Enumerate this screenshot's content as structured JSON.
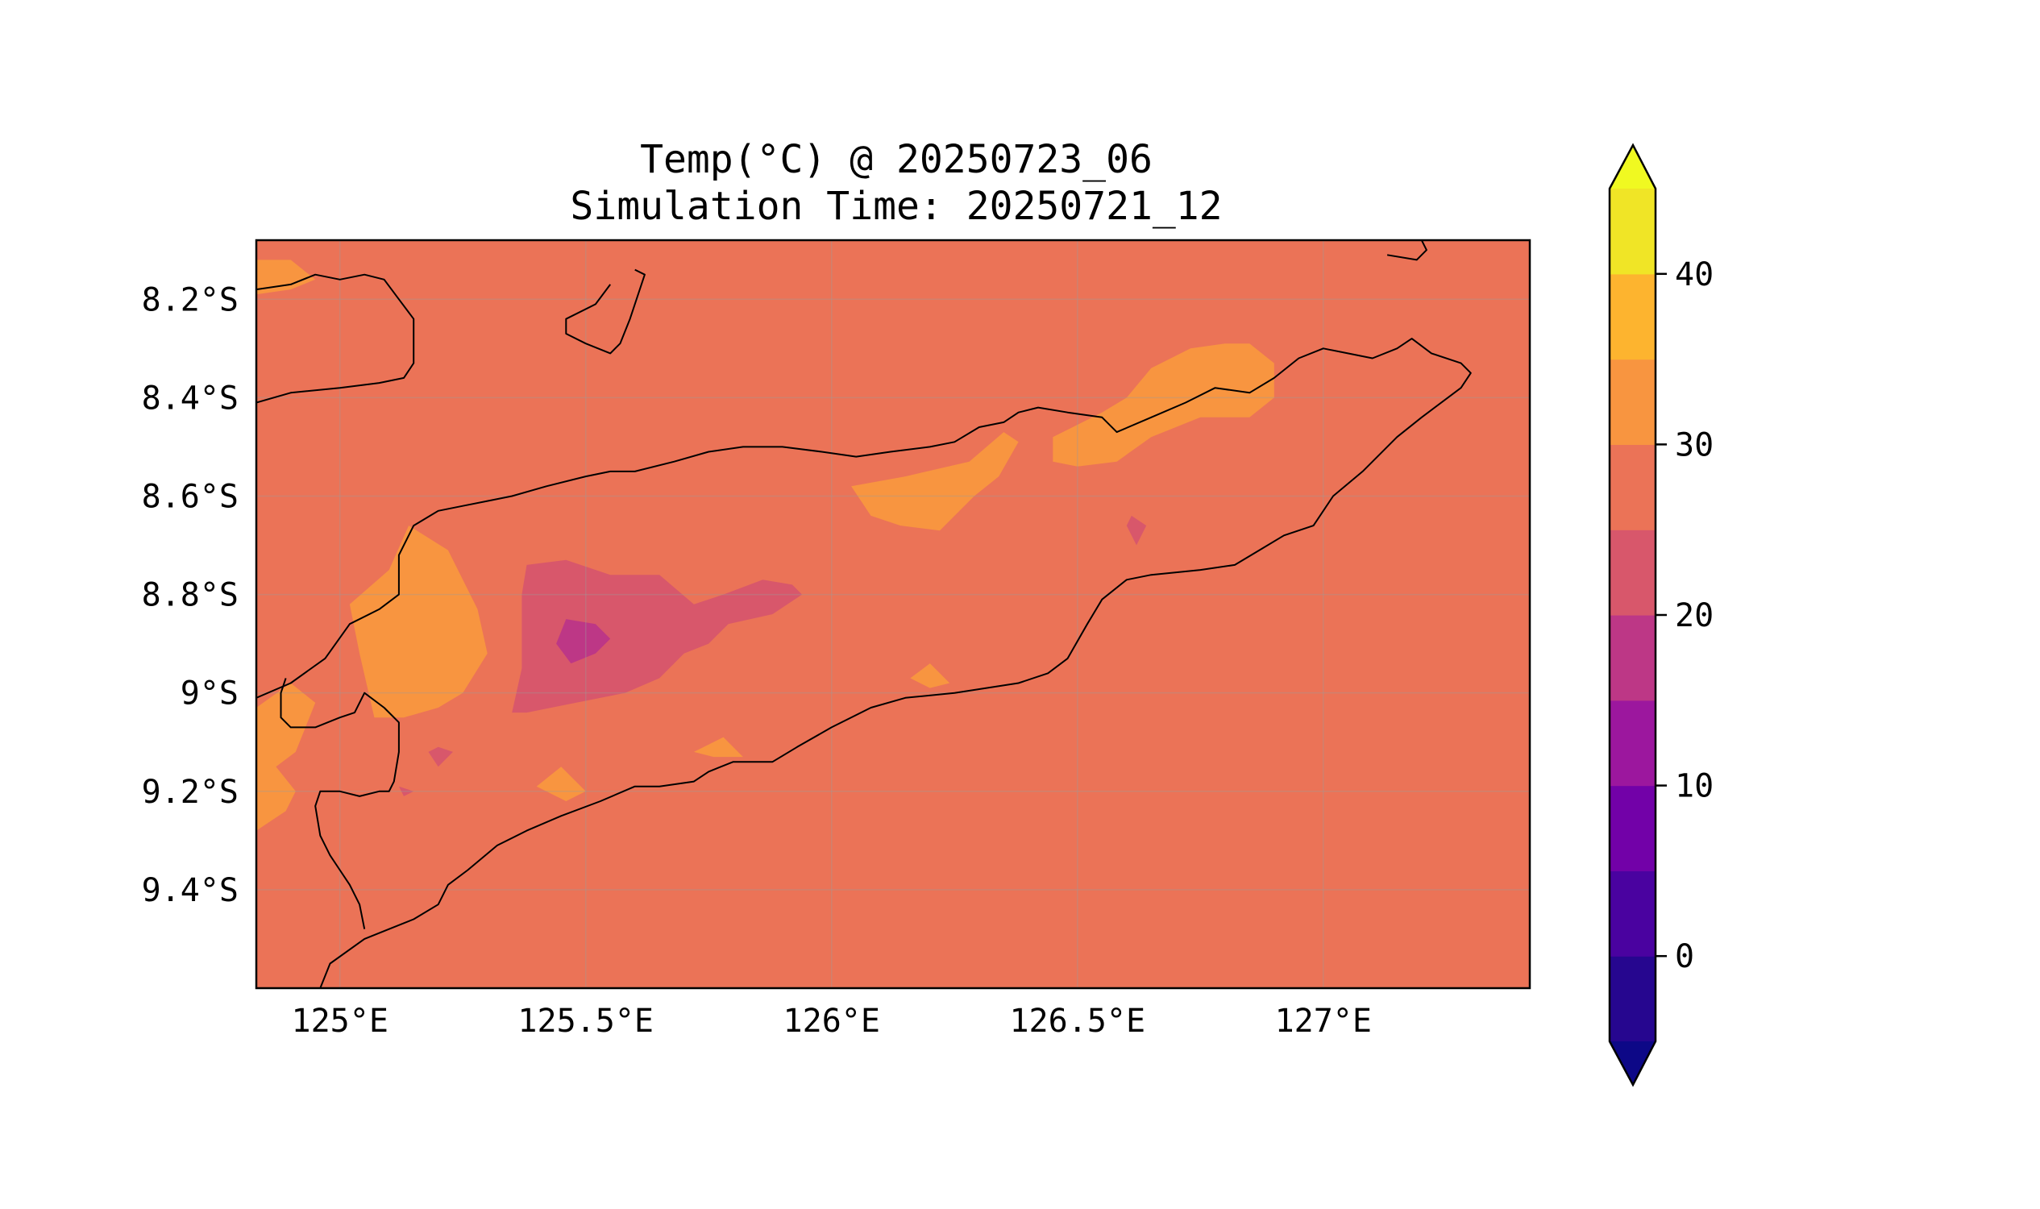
{
  "title": {
    "line1": "Temp(°C) @ 20250723_06",
    "line2": "Simulation Time: 20250721_12"
  },
  "map": {
    "variable": "Temp(°C)",
    "valid_time": "20250723_06",
    "simulation_time": "20250721_12",
    "lon_range": [
      124.83,
      127.42
    ],
    "lat_range": [
      -9.6,
      -8.08
    ],
    "coastlines": true,
    "gridlines": true
  },
  "axes": {
    "x_ticks": [
      {
        "value": 125.0,
        "label": "125°E"
      },
      {
        "value": 125.5,
        "label": "125.5°E"
      },
      {
        "value": 126.0,
        "label": "126°E"
      },
      {
        "value": 126.5,
        "label": "126.5°E"
      },
      {
        "value": 127.0,
        "label": "127°E"
      }
    ],
    "y_ticks": [
      {
        "value": -8.2,
        "label": "8.2°S"
      },
      {
        "value": -8.4,
        "label": "8.4°S"
      },
      {
        "value": -8.6,
        "label": "8.6°S"
      },
      {
        "value": -8.8,
        "label": "8.8°S"
      },
      {
        "value": -9.0,
        "label": "9°S"
      },
      {
        "value": -9.2,
        "label": "9.2°S"
      },
      {
        "value": -9.4,
        "label": "9.4°S"
      }
    ]
  },
  "colorbar": {
    "colormap": "plasma",
    "range": [
      -5,
      45
    ],
    "extend": "both",
    "ticks": [
      {
        "value": 0,
        "label": "0"
      },
      {
        "value": 10,
        "label": "10"
      },
      {
        "value": 20,
        "label": "20"
      },
      {
        "value": 30,
        "label": "30"
      },
      {
        "value": 40,
        "label": "40"
      }
    ],
    "levels": [
      {
        "min": -5,
        "max": 0,
        "color": "#26068f"
      },
      {
        "min": 0,
        "max": 5,
        "color": "#4a02a0"
      },
      {
        "min": 5,
        "max": 10,
        "color": "#7201a8"
      },
      {
        "min": 10,
        "max": 15,
        "color": "#9c179e"
      },
      {
        "min": 15,
        "max": 20,
        "color": "#bd3786"
      },
      {
        "min": 20,
        "max": 25,
        "color": "#d8576b"
      },
      {
        "min": 25,
        "max": 30,
        "color": "#eb7357"
      },
      {
        "min": 30,
        "max": 35,
        "color": "#f89540"
      },
      {
        "min": 35,
        "max": 40,
        "color": "#fdb42f"
      },
      {
        "min": 40,
        "max": 45,
        "color": "#f0e526"
      }
    ],
    "under_color": "#0d0887",
    "over_color": "#f0f921"
  },
  "chart_data": {
    "type": "heatmap",
    "background_level": "25-30 °C",
    "background_color": "#eb7357",
    "regions": [
      {
        "level": "30-35",
        "color": "#f89540",
        "lonlat": [
          [
            124.83,
            -8.12
          ],
          [
            124.9,
            -8.12
          ],
          [
            124.95,
            -8.16
          ],
          [
            124.9,
            -8.18
          ],
          [
            124.83,
            -8.19
          ]
        ]
      },
      {
        "level": "30-35",
        "color": "#f89540",
        "lonlat": [
          [
            125.14,
            -8.66
          ],
          [
            125.22,
            -8.71
          ],
          [
            125.28,
            -8.83
          ],
          [
            125.3,
            -8.92
          ],
          [
            125.25,
            -9.0
          ],
          [
            125.2,
            -9.03
          ],
          [
            125.13,
            -9.05
          ],
          [
            125.07,
            -9.05
          ],
          [
            125.04,
            -8.92
          ],
          [
            125.02,
            -8.82
          ],
          [
            125.1,
            -8.75
          ]
        ]
      },
      {
        "level": "30-35",
        "color": "#f89540",
        "lonlat": [
          [
            124.83,
            -9.03
          ],
          [
            124.9,
            -8.98
          ],
          [
            124.95,
            -9.02
          ],
          [
            124.91,
            -9.12
          ],
          [
            124.87,
            -9.15
          ],
          [
            124.91,
            -9.2
          ],
          [
            124.89,
            -9.24
          ],
          [
            124.83,
            -9.28
          ]
        ]
      },
      {
        "level": "30-35",
        "color": "#f89540",
        "lonlat": [
          [
            126.04,
            -8.58
          ],
          [
            126.15,
            -8.56
          ],
          [
            126.28,
            -8.53
          ],
          [
            126.35,
            -8.47
          ],
          [
            126.38,
            -8.49
          ],
          [
            126.34,
            -8.56
          ],
          [
            126.29,
            -8.6
          ],
          [
            126.22,
            -8.67
          ],
          [
            126.14,
            -8.66
          ],
          [
            126.08,
            -8.64
          ]
        ]
      },
      {
        "level": "30-35",
        "color": "#f89540",
        "lonlat": [
          [
            126.45,
            -8.48
          ],
          [
            126.55,
            -8.43
          ],
          [
            126.6,
            -8.4
          ],
          [
            126.65,
            -8.34
          ],
          [
            126.73,
            -8.3
          ],
          [
            126.8,
            -8.29
          ],
          [
            126.85,
            -8.29
          ],
          [
            126.9,
            -8.33
          ],
          [
            126.9,
            -8.4
          ],
          [
            126.85,
            -8.44
          ],
          [
            126.75,
            -8.44
          ],
          [
            126.65,
            -8.48
          ],
          [
            126.58,
            -8.53
          ],
          [
            126.5,
            -8.54
          ],
          [
            126.45,
            -8.53
          ]
        ]
      },
      {
        "level": "30-35",
        "color": "#f89540",
        "lonlat": [
          [
            125.4,
            -9.19
          ],
          [
            125.45,
            -9.15
          ],
          [
            125.5,
            -9.2
          ],
          [
            125.46,
            -9.22
          ]
        ]
      },
      {
        "level": "30-35",
        "color": "#f89540",
        "lonlat": [
          [
            125.72,
            -9.12
          ],
          [
            125.78,
            -9.09
          ],
          [
            125.82,
            -9.13
          ],
          [
            125.76,
            -9.13
          ]
        ]
      },
      {
        "level": "30-35",
        "color": "#f89540",
        "lonlat": [
          [
            126.16,
            -8.97
          ],
          [
            126.2,
            -8.94
          ],
          [
            126.24,
            -8.98
          ],
          [
            126.2,
            -8.99
          ]
        ]
      },
      {
        "level": "20-25",
        "color": "#d8576b",
        "lonlat": [
          [
            125.38,
            -8.74
          ],
          [
            125.46,
            -8.73
          ],
          [
            125.55,
            -8.76
          ],
          [
            125.65,
            -8.76
          ],
          [
            125.72,
            -8.82
          ],
          [
            125.78,
            -8.8
          ],
          [
            125.86,
            -8.77
          ],
          [
            125.92,
            -8.78
          ],
          [
            125.94,
            -8.8
          ],
          [
            125.88,
            -8.84
          ],
          [
            125.79,
            -8.86
          ],
          [
            125.75,
            -8.9
          ],
          [
            125.7,
            -8.92
          ],
          [
            125.65,
            -8.97
          ],
          [
            125.58,
            -9.0
          ],
          [
            125.48,
            -9.02
          ],
          [
            125.38,
            -9.04
          ],
          [
            125.35,
            -9.04
          ],
          [
            125.37,
            -8.95
          ],
          [
            125.37,
            -8.8
          ]
        ]
      },
      {
        "level": "15-20",
        "color": "#bd3786",
        "lonlat": [
          [
            125.46,
            -8.85
          ],
          [
            125.52,
            -8.86
          ],
          [
            125.55,
            -8.89
          ],
          [
            125.52,
            -8.92
          ],
          [
            125.47,
            -8.94
          ],
          [
            125.44,
            -8.9
          ]
        ]
      },
      {
        "level": "20-25",
        "color": "#d8576b",
        "lonlat": [
          [
            125.2,
            -9.11
          ],
          [
            125.23,
            -9.12
          ],
          [
            125.2,
            -9.15
          ],
          [
            125.18,
            -9.12
          ]
        ]
      },
      {
        "level": "20-25",
        "color": "#d8576b",
        "lonlat": [
          [
            126.61,
            -8.64
          ],
          [
            126.64,
            -8.66
          ],
          [
            126.62,
            -8.7
          ],
          [
            126.6,
            -8.66
          ]
        ]
      },
      {
        "level": "20-25",
        "color": "#d8576b",
        "lonlat": [
          [
            125.12,
            -9.19
          ],
          [
            125.15,
            -9.2
          ],
          [
            125.13,
            -9.21
          ]
        ]
      }
    ],
    "coastlines": [
      {
        "lonlat": [
          [
            124.83,
            -8.18
          ],
          [
            124.9,
            -8.17
          ],
          [
            124.95,
            -8.15
          ],
          [
            125.0,
            -8.16
          ],
          [
            125.05,
            -8.15
          ],
          [
            125.09,
            -8.16
          ],
          [
            125.12,
            -8.2
          ],
          [
            125.15,
            -8.24
          ],
          [
            125.15,
            -8.33
          ],
          [
            125.13,
            -8.36
          ],
          [
            125.08,
            -8.37
          ],
          [
            125.0,
            -8.38
          ],
          [
            124.9,
            -8.39
          ],
          [
            124.83,
            -8.41
          ]
        ]
      },
      {
        "lonlat": [
          [
            125.6,
            -8.14
          ],
          [
            125.62,
            -8.15
          ],
          [
            125.59,
            -8.24
          ],
          [
            125.57,
            -8.29
          ],
          [
            125.55,
            -8.31
          ],
          [
            125.5,
            -8.29
          ],
          [
            125.46,
            -8.27
          ],
          [
            125.46,
            -8.24
          ],
          [
            125.52,
            -8.21
          ],
          [
            125.55,
            -8.17
          ]
        ]
      },
      {
        "lonlat": [
          [
            127.12,
            -8.08
          ],
          [
            127.2,
            -8.08
          ],
          [
            127.21,
            -8.1
          ],
          [
            127.19,
            -8.12
          ],
          [
            127.13,
            -8.11
          ]
        ]
      },
      {
        "lonlat": [
          [
            124.83,
            -9.01
          ],
          [
            124.9,
            -8.98
          ],
          [
            124.97,
            -8.93
          ],
          [
            125.02,
            -8.86
          ],
          [
            125.08,
            -8.83
          ],
          [
            125.12,
            -8.8
          ],
          [
            125.12,
            -8.72
          ],
          [
            125.15,
            -8.66
          ],
          [
            125.2,
            -8.63
          ],
          [
            125.25,
            -8.62
          ],
          [
            125.3,
            -8.61
          ],
          [
            125.35,
            -8.6
          ],
          [
            125.42,
            -8.58
          ],
          [
            125.5,
            -8.56
          ],
          [
            125.55,
            -8.55
          ],
          [
            125.6,
            -8.55
          ],
          [
            125.68,
            -8.53
          ],
          [
            125.75,
            -8.51
          ],
          [
            125.82,
            -8.5
          ],
          [
            125.9,
            -8.5
          ],
          [
            125.98,
            -8.51
          ],
          [
            126.05,
            -8.52
          ],
          [
            126.12,
            -8.51
          ],
          [
            126.2,
            -8.5
          ],
          [
            126.25,
            -8.49
          ],
          [
            126.3,
            -8.46
          ],
          [
            126.35,
            -8.45
          ],
          [
            126.38,
            -8.43
          ],
          [
            126.42,
            -8.42
          ],
          [
            126.48,
            -8.43
          ],
          [
            126.55,
            -8.44
          ],
          [
            126.58,
            -8.47
          ],
          [
            126.65,
            -8.44
          ],
          [
            126.72,
            -8.41
          ],
          [
            126.78,
            -8.38
          ],
          [
            126.85,
            -8.39
          ],
          [
            126.9,
            -8.36
          ],
          [
            126.95,
            -8.32
          ],
          [
            127.0,
            -8.3
          ],
          [
            127.05,
            -8.31
          ],
          [
            127.1,
            -8.32
          ],
          [
            127.15,
            -8.3
          ],
          [
            127.18,
            -8.28
          ],
          [
            127.22,
            -8.31
          ],
          [
            127.28,
            -8.33
          ],
          [
            127.3,
            -8.35
          ],
          [
            127.28,
            -8.38
          ],
          [
            127.2,
            -8.44
          ],
          [
            127.15,
            -8.48
          ],
          [
            127.08,
            -8.55
          ],
          [
            127.02,
            -8.6
          ],
          [
            126.98,
            -8.66
          ],
          [
            126.92,
            -8.68
          ],
          [
            126.87,
            -8.71
          ],
          [
            126.82,
            -8.74
          ],
          [
            126.75,
            -8.75
          ],
          [
            126.65,
            -8.76
          ],
          [
            126.6,
            -8.77
          ],
          [
            126.55,
            -8.81
          ],
          [
            126.52,
            -8.86
          ],
          [
            126.48,
            -8.93
          ],
          [
            126.44,
            -8.96
          ],
          [
            126.38,
            -8.98
          ],
          [
            126.25,
            -9.0
          ],
          [
            126.15,
            -9.01
          ],
          [
            126.08,
            -9.03
          ],
          [
            126.0,
            -9.07
          ],
          [
            125.93,
            -9.11
          ],
          [
            125.88,
            -9.14
          ],
          [
            125.8,
            -9.14
          ],
          [
            125.75,
            -9.16
          ],
          [
            125.72,
            -9.18
          ],
          [
            125.65,
            -9.19
          ],
          [
            125.6,
            -9.19
          ],
          [
            125.53,
            -9.22
          ],
          [
            125.45,
            -9.25
          ],
          [
            125.38,
            -9.28
          ],
          [
            125.32,
            -9.31
          ],
          [
            125.26,
            -9.36
          ],
          [
            125.22,
            -9.39
          ],
          [
            125.2,
            -9.43
          ],
          [
            125.15,
            -9.46
          ],
          [
            125.1,
            -9.48
          ],
          [
            125.05,
            -9.5
          ],
          [
            124.98,
            -9.55
          ],
          [
            124.96,
            -9.6
          ]
        ]
      },
      {
        "lonlat": [
          [
            125.05,
            -9.48
          ],
          [
            125.04,
            -9.43
          ],
          [
            125.02,
            -9.39
          ],
          [
            125.0,
            -9.36
          ],
          [
            124.98,
            -9.33
          ],
          [
            124.96,
            -9.29
          ],
          [
            124.95,
            -9.23
          ],
          [
            124.96,
            -9.2
          ],
          [
            125.0,
            -9.2
          ],
          [
            125.04,
            -9.21
          ],
          [
            125.08,
            -9.2
          ],
          [
            125.1,
            -9.2
          ],
          [
            125.11,
            -9.18
          ],
          [
            125.12,
            -9.12
          ],
          [
            125.12,
            -9.06
          ],
          [
            125.09,
            -9.03
          ],
          [
            125.05,
            -9.0
          ],
          [
            125.03,
            -9.04
          ],
          [
            125.0,
            -9.05
          ],
          [
            124.95,
            -9.07
          ],
          [
            124.9,
            -9.07
          ],
          [
            124.88,
            -9.05
          ],
          [
            124.88,
            -9.0
          ],
          [
            124.89,
            -8.97
          ]
        ]
      }
    ]
  }
}
